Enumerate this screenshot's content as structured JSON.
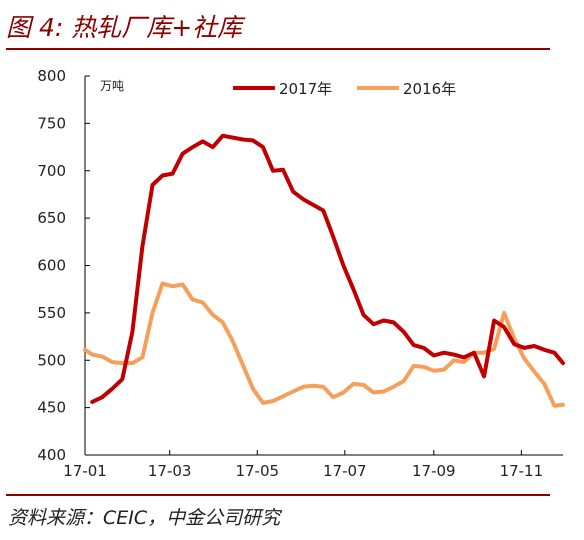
{
  "title": "图 4: 热轧厂库+社库",
  "source": "资料来源：CEIC，中金公司研究",
  "chart_data": {
    "type": "line",
    "unit_label": "万吨",
    "ylim": [
      400,
      800
    ],
    "yticks": [
      400,
      450,
      500,
      550,
      600,
      650,
      700,
      750,
      800
    ],
    "x_domain": [
      "2017-01-01",
      "2017-11-30"
    ],
    "xticks": [
      {
        "label": "17-01",
        "date": "2017-01-01"
      },
      {
        "label": "17-03",
        "date": "2017-03-01"
      },
      {
        "label": "17-05",
        "date": "2017-05-01"
      },
      {
        "label": "17-07",
        "date": "2017-07-01"
      },
      {
        "label": "17-09",
        "date": "2017-09-01"
      },
      {
        "label": "17-11",
        "date": "2017-11-01"
      }
    ],
    "grid": false,
    "legend_position": "top",
    "series": [
      {
        "name": "2017年",
        "color": "#c00000",
        "points": [
          [
            "2017-01-06",
            456
          ],
          [
            "2017-01-13",
            461
          ],
          [
            "2017-01-20",
            470
          ],
          [
            "2017-01-27",
            480
          ],
          [
            "2017-02-03",
            530
          ],
          [
            "2017-02-10",
            620
          ],
          [
            "2017-02-17",
            685
          ],
          [
            "2017-02-24",
            695
          ],
          [
            "2017-03-03",
            697
          ],
          [
            "2017-03-10",
            718
          ],
          [
            "2017-03-17",
            725
          ],
          [
            "2017-03-24",
            731
          ],
          [
            "2017-03-31",
            725
          ],
          [
            "2017-04-07",
            737
          ],
          [
            "2017-04-14",
            735
          ],
          [
            "2017-04-21",
            733
          ],
          [
            "2017-04-28",
            732
          ],
          [
            "2017-05-05",
            725
          ],
          [
            "2017-05-12",
            700
          ],
          [
            "2017-05-19",
            701
          ],
          [
            "2017-05-26",
            678
          ],
          [
            "2017-06-02",
            670
          ],
          [
            "2017-06-09",
            664
          ],
          [
            "2017-06-16",
            658
          ],
          [
            "2017-06-23",
            630
          ],
          [
            "2017-06-30",
            600
          ],
          [
            "2017-07-07",
            575
          ],
          [
            "2017-07-14",
            548
          ],
          [
            "2017-07-21",
            538
          ],
          [
            "2017-07-28",
            542
          ],
          [
            "2017-08-04",
            540
          ],
          [
            "2017-08-11",
            530
          ],
          [
            "2017-08-18",
            516
          ],
          [
            "2017-08-25",
            513
          ],
          [
            "2017-09-01",
            505
          ],
          [
            "2017-09-08",
            508
          ],
          [
            "2017-09-15",
            506
          ],
          [
            "2017-09-22",
            503
          ],
          [
            "2017-09-29",
            508
          ],
          [
            "2017-10-06",
            483
          ],
          [
            "2017-10-13",
            542
          ],
          [
            "2017-10-20",
            535
          ],
          [
            "2017-10-27",
            517
          ],
          [
            "2017-11-03",
            513
          ],
          [
            "2017-11-10",
            515
          ],
          [
            "2017-11-17",
            511
          ],
          [
            "2017-11-24",
            508
          ],
          [
            "2017-11-30",
            497
          ]
        ]
      },
      {
        "name": "2016年",
        "color": "#f5a05a",
        "points": [
          [
            "2017-01-01",
            511
          ],
          [
            "2017-01-06",
            506
          ],
          [
            "2017-01-13",
            504
          ],
          [
            "2017-01-20",
            498
          ],
          [
            "2017-01-27",
            497
          ],
          [
            "2017-02-03",
            497
          ],
          [
            "2017-02-10",
            503
          ],
          [
            "2017-02-17",
            550
          ],
          [
            "2017-02-24",
            581
          ],
          [
            "2017-03-03",
            578
          ],
          [
            "2017-03-10",
            580
          ],
          [
            "2017-03-17",
            564
          ],
          [
            "2017-03-24",
            561
          ],
          [
            "2017-03-31",
            548
          ],
          [
            "2017-04-07",
            540
          ],
          [
            "2017-04-14",
            520
          ],
          [
            "2017-04-21",
            495
          ],
          [
            "2017-04-28",
            470
          ],
          [
            "2017-05-05",
            455
          ],
          [
            "2017-05-12",
            457
          ],
          [
            "2017-05-19",
            462
          ],
          [
            "2017-05-26",
            467
          ],
          [
            "2017-06-02",
            472
          ],
          [
            "2017-06-09",
            473
          ],
          [
            "2017-06-16",
            472
          ],
          [
            "2017-06-23",
            461
          ],
          [
            "2017-06-30",
            466
          ],
          [
            "2017-07-07",
            475
          ],
          [
            "2017-07-14",
            474
          ],
          [
            "2017-07-21",
            466
          ],
          [
            "2017-07-28",
            467
          ],
          [
            "2017-08-04",
            472
          ],
          [
            "2017-08-11",
            478
          ],
          [
            "2017-08-18",
            494
          ],
          [
            "2017-08-25",
            493
          ],
          [
            "2017-09-01",
            489
          ],
          [
            "2017-09-08",
            490
          ],
          [
            "2017-09-15",
            500
          ],
          [
            "2017-09-22",
            498
          ],
          [
            "2017-09-29",
            508
          ],
          [
            "2017-10-06",
            508
          ],
          [
            "2017-10-13",
            512
          ],
          [
            "2017-10-20",
            550
          ],
          [
            "2017-10-27",
            523
          ],
          [
            "2017-11-03",
            502
          ],
          [
            "2017-11-10",
            488
          ],
          [
            "2017-11-17",
            475
          ],
          [
            "2017-11-24",
            452
          ],
          [
            "2017-11-30",
            453
          ]
        ]
      }
    ]
  }
}
